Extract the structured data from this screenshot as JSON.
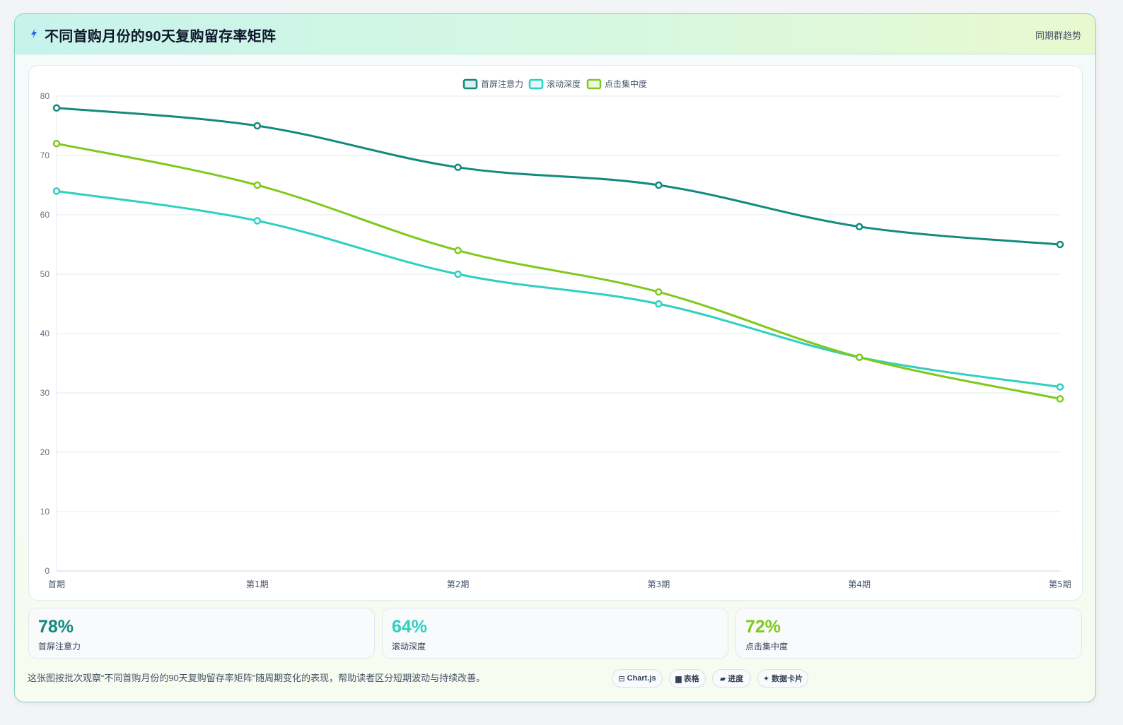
{
  "header": {
    "title": "不同首购月份的90天复购留存率矩阵",
    "tag": "同期群趋势"
  },
  "colors": {
    "accent": "#0f8c82",
    "series": [
      "#138a7d",
      "#2fd0c0",
      "#80c81c"
    ]
  },
  "chart_data": {
    "type": "line",
    "categories": [
      "首期",
      "第1期",
      "第2期",
      "第3期",
      "第4期",
      "第5期"
    ],
    "series": [
      {
        "name": "首屏注意力",
        "values": [
          78,
          75,
          68,
          65,
          58,
          55
        ]
      },
      {
        "name": "滚动深度",
        "values": [
          64,
          59,
          50,
          45,
          36,
          31
        ]
      },
      {
        "name": "点击集中度",
        "values": [
          72,
          65,
          54,
          47,
          36,
          29
        ]
      }
    ],
    "yticks": [
      0,
      10,
      20,
      30,
      40,
      50,
      60,
      70,
      80
    ],
    "ylim": [
      0,
      80
    ],
    "grid": true,
    "legend": "top-center"
  },
  "stats": [
    {
      "value": "78%",
      "label": "首屏注意力"
    },
    {
      "value": "64%",
      "label": "滚动深度"
    },
    {
      "value": "72%",
      "label": "点击集中度"
    }
  ],
  "footer": {
    "note": "这张图按批次观察“不同首购月份的90天复购留存率矩阵”随周期变化的表现，帮助读者区分短期波动与持续改善。",
    "chips": [
      {
        "icon": "⊟",
        "icon_name": "chart-icon",
        "label": "Chart.js"
      },
      {
        "icon": "▆",
        "icon_name": "table-icon",
        "label": "表格"
      },
      {
        "icon": "▰",
        "icon_name": "progress-icon",
        "label": "进度"
      },
      {
        "icon": "✦",
        "icon_name": "sparkle-icon",
        "label": "数据卡片"
      }
    ]
  }
}
